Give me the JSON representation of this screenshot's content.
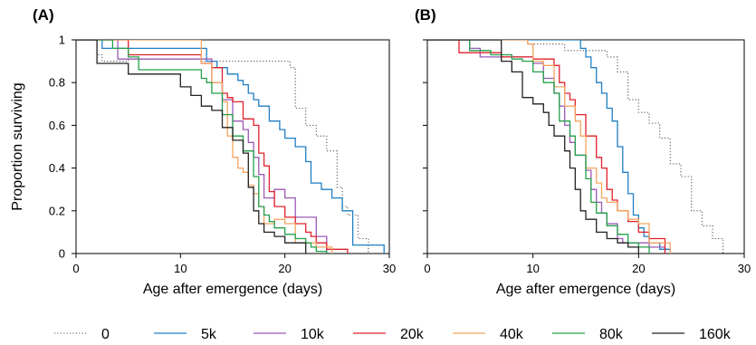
{
  "chart_data": [
    {
      "type": "line",
      "panel_label": "(A)",
      "xlabel": "Age after emergence (days)",
      "ylabel": "Proportion surviving",
      "xlim": [
        0,
        30
      ],
      "ylim": [
        0,
        1
      ],
      "xticks": [
        0,
        10,
        20,
        30
      ],
      "yticks": [
        0,
        0.2,
        0.4,
        0.6,
        0.8,
        1
      ],
      "ytick_labels": [
        "0",
        "0.2",
        "0.4",
        "0.6",
        "0.8",
        "1"
      ],
      "step": true,
      "series": [
        {
          "name": "0",
          "color": "#555555",
          "dash": "dotted",
          "x": [
            0,
            2,
            2.5,
            5,
            10,
            12,
            19,
            20.5,
            21,
            22,
            23,
            24,
            25,
            25.5,
            26,
            27,
            28
          ],
          "y": [
            1,
            0.93,
            0.9,
            0.91,
            0.91,
            0.9,
            0.9,
            0.87,
            0.68,
            0.6,
            0.55,
            0.48,
            0.31,
            0.22,
            0.18,
            0.07,
            0
          ]
        },
        {
          "name": "5k",
          "color": "#1f7fc4",
          "dash": "solid",
          "x": [
            0,
            2.5,
            6,
            10,
            11.5,
            12.5,
            13.5,
            14.5,
            15.5,
            16,
            16.5,
            17,
            17.5,
            18.5,
            19.5,
            20,
            21,
            22,
            22.5,
            23.5,
            24.5,
            25.5,
            26.5,
            29.5
          ],
          "y": [
            1,
            0.96,
            0.96,
            0.96,
            0.96,
            0.9,
            0.87,
            0.84,
            0.81,
            0.79,
            0.75,
            0.72,
            0.69,
            0.62,
            0.58,
            0.54,
            0.5,
            0.43,
            0.33,
            0.3,
            0.26,
            0.2,
            0.04,
            0
          ]
        },
        {
          "name": "10k",
          "color": "#9b59b6",
          "dash": "solid",
          "x": [
            0,
            4,
            12,
            13,
            14,
            15,
            16,
            16.5,
            17,
            17.5,
            18,
            19,
            20,
            21,
            22,
            23,
            24
          ],
          "y": [
            1,
            0.91,
            0.91,
            0.8,
            0.72,
            0.62,
            0.58,
            0.52,
            0.45,
            0.37,
            0.26,
            0.3,
            0.26,
            0.17,
            0.17,
            0.08,
            0
          ]
        },
        {
          "name": "20k",
          "color": "#e0202a",
          "dash": "solid",
          "x": [
            0,
            5,
            12,
            13,
            14,
            14.5,
            15,
            16,
            17,
            17.5,
            18,
            18.5,
            19,
            20,
            21,
            22,
            22.5,
            23,
            24,
            26
          ],
          "y": [
            1,
            0.93,
            0.89,
            0.87,
            0.75,
            0.73,
            0.71,
            0.63,
            0.6,
            0.47,
            0.41,
            0.29,
            0.22,
            0.17,
            0.14,
            0.1,
            0.08,
            0.05,
            0.02,
            0
          ]
        },
        {
          "name": "40k",
          "color": "#f4a460",
          "dash": "solid",
          "x": [
            0,
            6,
            12,
            13,
            14,
            14.5,
            15,
            15.5,
            16,
            16.5,
            17,
            17.5,
            18,
            19,
            20,
            21,
            23,
            24.5
          ],
          "y": [
            1,
            1,
            0.89,
            0.8,
            0.71,
            0.55,
            0.45,
            0.4,
            0.38,
            0.32,
            0.28,
            0.22,
            0.14,
            0.16,
            0.14,
            0.05,
            0.03,
            0
          ]
        },
        {
          "name": "80k",
          "color": "#22a04a",
          "dash": "solid",
          "x": [
            0,
            3.5,
            5,
            6,
            10,
            12,
            12.5,
            13,
            14,
            15,
            16,
            17,
            17.5,
            18,
            18.5,
            19,
            20,
            21,
            22,
            22.5,
            23,
            24
          ],
          "y": [
            1,
            0.96,
            0.92,
            0.86,
            0.86,
            0.82,
            0.8,
            0.75,
            0.65,
            0.55,
            0.48,
            0.36,
            0.22,
            0.18,
            0.15,
            0.12,
            0.09,
            0.07,
            0.05,
            0.03,
            0.01,
            0
          ]
        },
        {
          "name": "160k",
          "color": "#222222",
          "dash": "solid",
          "x": [
            0,
            2,
            4,
            5,
            10,
            11,
            12,
            13,
            14,
            15,
            16,
            16.5,
            17,
            17.5,
            18,
            19,
            20,
            22
          ],
          "y": [
            1,
            0.89,
            0.89,
            0.84,
            0.78,
            0.74,
            0.69,
            0.67,
            0.59,
            0.53,
            0.47,
            0.31,
            0.2,
            0.14,
            0.1,
            0.08,
            0.05,
            0
          ]
        }
      ]
    },
    {
      "type": "line",
      "panel_label": "(B)",
      "xlabel": "Age after emergence (days)",
      "ylabel": "",
      "xlim": [
        0,
        30
      ],
      "ylim": [
        0,
        1
      ],
      "xticks": [
        0,
        10,
        20,
        30
      ],
      "yticks": [
        0,
        0.2,
        0.4,
        0.6,
        0.8,
        1
      ],
      "ytick_labels": [
        "",
        "",
        "",
        "",
        "",
        ""
      ],
      "step": true,
      "series": [
        {
          "name": "0",
          "color": "#555555",
          "dash": "dotted",
          "x": [
            0,
            9.5,
            13,
            17,
            18,
            19,
            20,
            21,
            22,
            23,
            24,
            25,
            26,
            27,
            28
          ],
          "y": [
            1,
            0.98,
            0.95,
            0.92,
            0.85,
            0.72,
            0.66,
            0.61,
            0.54,
            0.42,
            0.36,
            0.2,
            0.13,
            0.07,
            0
          ]
        },
        {
          "name": "5k",
          "color": "#1f7fc4",
          "dash": "solid",
          "x": [
            0,
            14.5,
            15,
            15.5,
            16,
            16.5,
            17,
            17.5,
            18,
            18.5,
            19,
            19.5,
            20,
            20.5,
            21,
            22,
            23
          ],
          "y": [
            1,
            0.96,
            0.92,
            0.87,
            0.8,
            0.75,
            0.68,
            0.62,
            0.5,
            0.38,
            0.28,
            0.18,
            0.12,
            0.08,
            0.05,
            0.02,
            0
          ]
        },
        {
          "name": "10k",
          "color": "#9b59b6",
          "dash": "solid",
          "x": [
            0,
            4,
            5,
            8,
            10,
            11,
            12,
            12.5,
            13,
            13.5,
            14,
            15,
            15.5,
            16,
            16.5,
            17,
            18,
            18.5,
            21,
            22.5
          ],
          "y": [
            1,
            0.96,
            0.92,
            0.92,
            0.89,
            0.82,
            0.75,
            0.69,
            0.6,
            0.52,
            0.46,
            0.39,
            0.3,
            0.24,
            0.19,
            0.14,
            0.07,
            0.05,
            0.03,
            0
          ]
        },
        {
          "name": "20k",
          "color": "#e0202a",
          "dash": "solid",
          "x": [
            0,
            3,
            7,
            10,
            12,
            12.5,
            13,
            13.5,
            14,
            15,
            16,
            16.5,
            17,
            17.5,
            18,
            19,
            20,
            21,
            22.5
          ],
          "y": [
            1,
            0.94,
            0.92,
            0.91,
            0.88,
            0.8,
            0.75,
            0.72,
            0.65,
            0.55,
            0.45,
            0.4,
            0.3,
            0.25,
            0.2,
            0.15,
            0.1,
            0.07,
            0
          ]
        },
        {
          "name": "40k",
          "color": "#f4a460",
          "dash": "solid",
          "x": [
            0,
            6,
            9.5,
            10,
            11,
            12,
            13,
            14,
            14.5,
            15,
            16,
            16.5,
            17,
            18,
            19,
            20,
            21,
            23
          ],
          "y": [
            1,
            1,
            0.98,
            0.9,
            0.88,
            0.78,
            0.69,
            0.62,
            0.55,
            0.4,
            0.33,
            0.26,
            0.24,
            0.2,
            0.16,
            0.14,
            0.05,
            0
          ]
        },
        {
          "name": "80k",
          "color": "#22a04a",
          "dash": "solid",
          "x": [
            0,
            4,
            6,
            8,
            9,
            10,
            11,
            12,
            12.5,
            13.5,
            14,
            15,
            15.5,
            16,
            17,
            18,
            19,
            20,
            21
          ],
          "y": [
            1,
            0.95,
            0.93,
            0.91,
            0.9,
            0.85,
            0.8,
            0.75,
            0.62,
            0.55,
            0.46,
            0.35,
            0.24,
            0.19,
            0.13,
            0.09,
            0.05,
            0.03,
            0
          ]
        },
        {
          "name": "160k",
          "color": "#222222",
          "dash": "solid",
          "x": [
            0,
            7,
            8,
            9,
            10,
            11,
            11.5,
            12,
            13,
            13.5,
            14,
            14.5,
            15,
            16,
            17,
            18,
            19,
            20
          ],
          "y": [
            1,
            0.9,
            0.85,
            0.73,
            0.7,
            0.66,
            0.6,
            0.55,
            0.48,
            0.4,
            0.3,
            0.2,
            0.16,
            0.1,
            0.07,
            0.05,
            0.03,
            0
          ]
        }
      ]
    }
  ],
  "legend": {
    "items": [
      {
        "label": "0",
        "color": "#555555",
        "dash": "dotted"
      },
      {
        "label": "5k",
        "color": "#1f7fc4",
        "dash": "solid"
      },
      {
        "label": "10k",
        "color": "#9b59b6",
        "dash": "solid"
      },
      {
        "label": "20k",
        "color": "#e0202a",
        "dash": "solid"
      },
      {
        "label": "40k",
        "color": "#f4a460",
        "dash": "solid"
      },
      {
        "label": "80k",
        "color": "#22a04a",
        "dash": "solid"
      },
      {
        "label": "160k",
        "color": "#222222",
        "dash": "solid"
      }
    ]
  }
}
